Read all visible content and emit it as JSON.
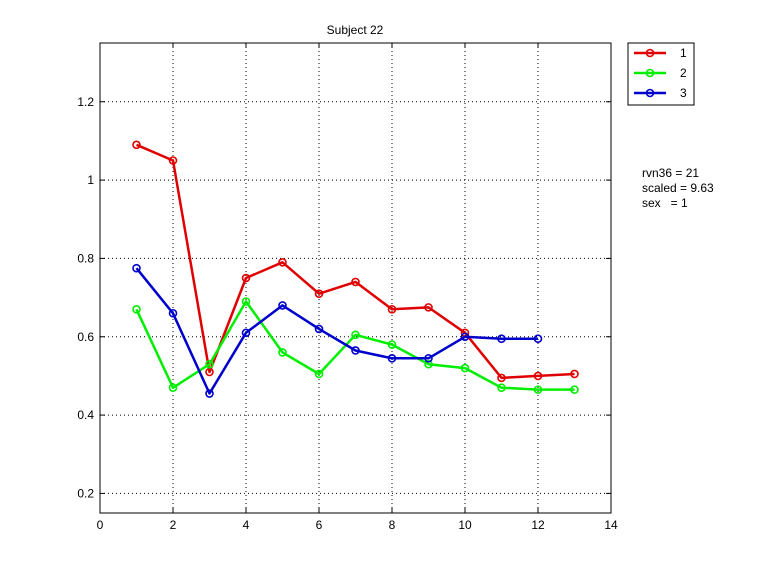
{
  "chart_data": {
    "type": "line",
    "title": "Subject 22",
    "xlabel": "",
    "ylabel": "",
    "xlim": [
      0,
      14
    ],
    "ylim": [
      0.15,
      1.35
    ],
    "xticks": [
      "0",
      "2",
      "4",
      "6",
      "8",
      "10",
      "12",
      "14"
    ],
    "xtick_values": [
      0,
      2,
      4,
      6,
      8,
      10,
      12,
      14
    ],
    "yticks": [
      "0.2",
      "0.4",
      "0.6",
      "0.8",
      "1",
      "1.2"
    ],
    "ytick_values": [
      0.2,
      0.4,
      0.6,
      0.8,
      1.0,
      1.2
    ],
    "grid": true,
    "legend_position": "outside-top-right",
    "series": [
      {
        "name": "1",
        "color": "#e00000",
        "marker": "circle",
        "x": [
          1,
          2,
          3,
          4,
          5,
          6,
          7,
          8,
          9,
          10,
          11,
          12,
          13
        ],
        "y": [
          1.09,
          1.05,
          0.51,
          0.75,
          0.79,
          0.71,
          0.74,
          0.67,
          0.675,
          0.61,
          0.495,
          0.5,
          0.505
        ]
      },
      {
        "name": "2",
        "color": "#00ee00",
        "marker": "circle",
        "x": [
          1,
          2,
          3,
          4,
          5,
          6,
          7,
          8,
          9,
          10,
          11,
          12,
          13
        ],
        "y": [
          0.67,
          0.47,
          0.53,
          0.69,
          0.56,
          0.505,
          0.605,
          0.58,
          0.53,
          0.52,
          0.47,
          0.465,
          0.465
        ]
      },
      {
        "name": "3",
        "color": "#0000cc",
        "marker": "circle",
        "x": [
          1,
          2,
          3,
          4,
          5,
          6,
          7,
          8,
          9,
          10,
          11,
          12
        ],
        "y": [
          0.775,
          0.66,
          0.455,
          0.61,
          0.68,
          0.62,
          0.565,
          0.545,
          0.545,
          0.6,
          0.595,
          0.595
        ]
      }
    ],
    "annotations": [
      "rvn36 = 21",
      "scaled = 9.63",
      "sex   = 1"
    ]
  }
}
